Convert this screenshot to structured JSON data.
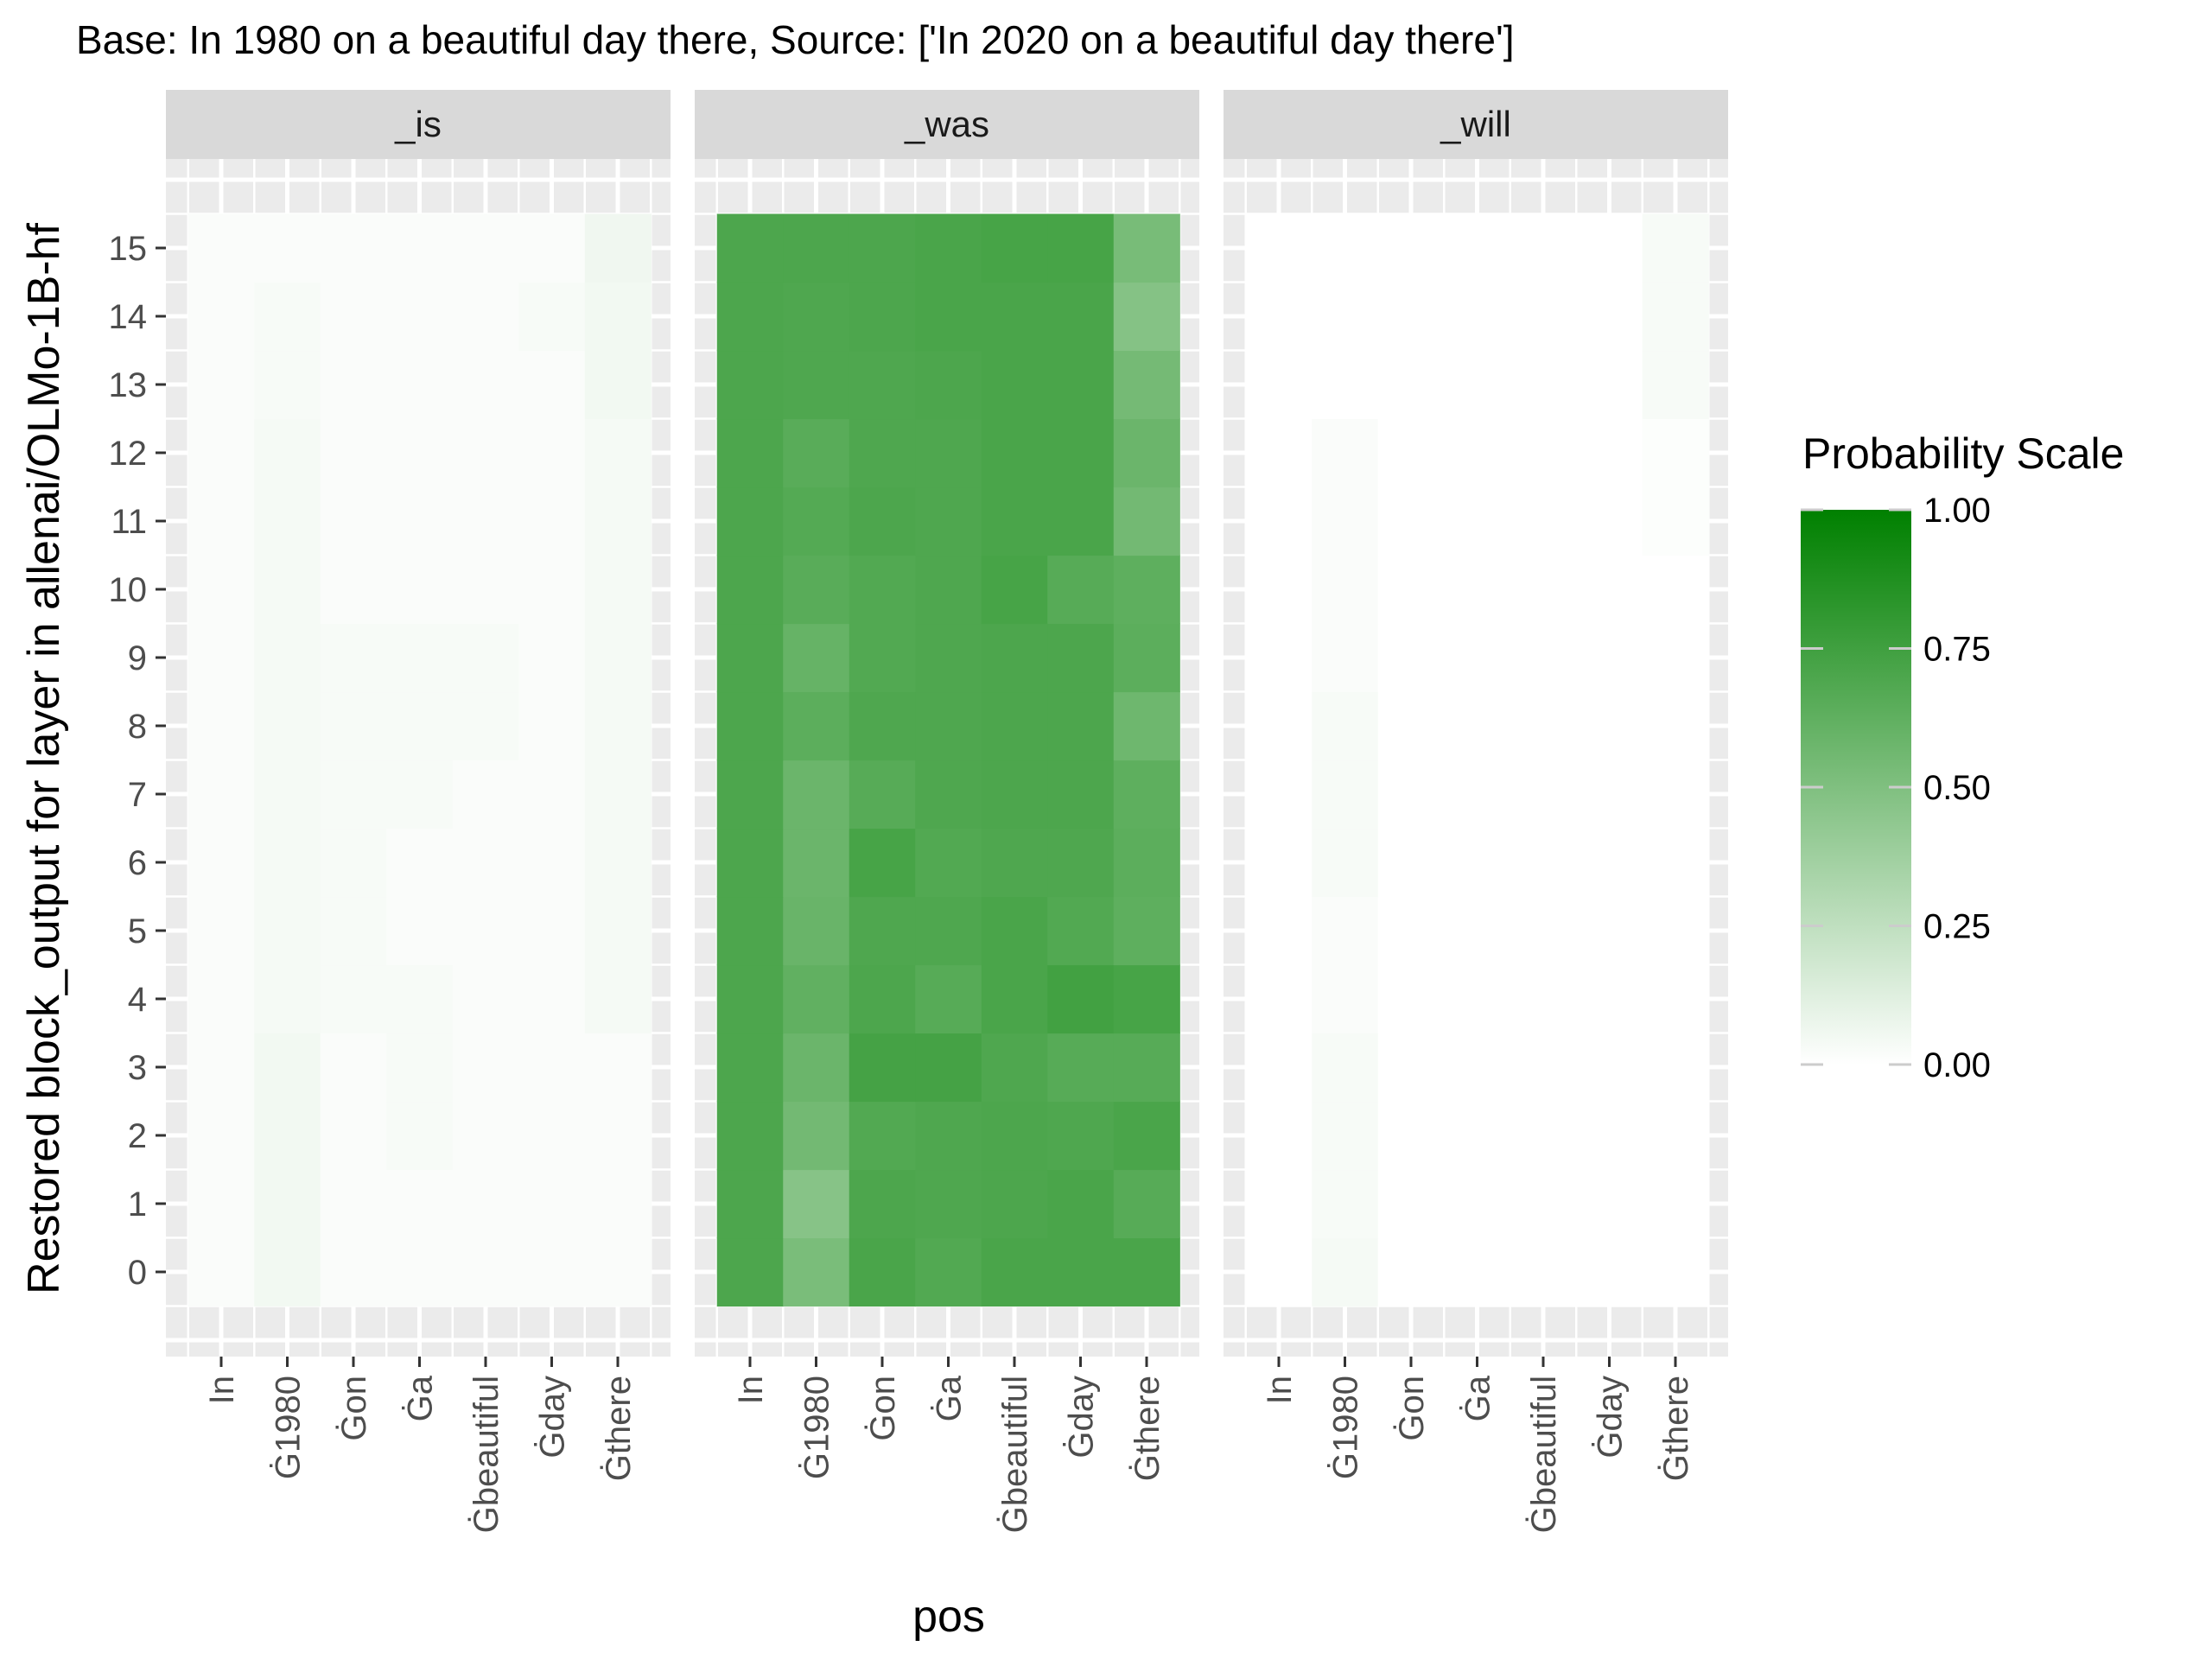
{
  "chart_data": {
    "type": "heatmap",
    "title": "Base: In 1980 on a beautiful day there, Source: ['In 2020 on a beautiful day there']",
    "xlabel": "pos",
    "ylabel": "Restored block_output for layer in allenai/OLMo-1B-hf",
    "x_categories": [
      "In",
      "Ġ1980",
      "Ġon",
      "Ġa",
      "Ġbeautiful",
      "Ġday",
      "Ġthere"
    ],
    "x_tick_labels": [
      "In",
      "Ġ1980",
      "Ġon",
      "Ġa",
      "Ġbeautiful",
      "Ġday",
      "Ġthere"
    ],
    "y_categories": [
      0,
      1,
      2,
      3,
      4,
      5,
      6,
      7,
      8,
      9,
      10,
      11,
      12,
      13,
      14,
      15
    ],
    "y_tick_labels": [
      "0",
      "1",
      "2",
      "3",
      "4",
      "5",
      "6",
      "7",
      "8",
      "9",
      "10",
      "11",
      "12",
      "13",
      "14",
      "15"
    ],
    "panels": [
      {
        "name": "_is",
        "values": [
          [
            0.02,
            0.05,
            0.02,
            0.02,
            0.02,
            0.02,
            0.02
          ],
          [
            0.02,
            0.05,
            0.02,
            0.02,
            0.02,
            0.02,
            0.02
          ],
          [
            0.02,
            0.05,
            0.02,
            0.03,
            0.02,
            0.02,
            0.02
          ],
          [
            0.02,
            0.05,
            0.02,
            0.03,
            0.02,
            0.02,
            0.02
          ],
          [
            0.02,
            0.04,
            0.03,
            0.03,
            0.02,
            0.02,
            0.04
          ],
          [
            0.02,
            0.04,
            0.03,
            0.02,
            0.02,
            0.02,
            0.04
          ],
          [
            0.02,
            0.04,
            0.03,
            0.02,
            0.02,
            0.02,
            0.04
          ],
          [
            0.02,
            0.04,
            0.03,
            0.03,
            0.02,
            0.02,
            0.04
          ],
          [
            0.02,
            0.04,
            0.03,
            0.03,
            0.03,
            0.02,
            0.04
          ],
          [
            0.02,
            0.04,
            0.03,
            0.03,
            0.03,
            0.02,
            0.04
          ],
          [
            0.02,
            0.04,
            0.02,
            0.02,
            0.02,
            0.02,
            0.04
          ],
          [
            0.02,
            0.04,
            0.02,
            0.02,
            0.02,
            0.02,
            0.04
          ],
          [
            0.02,
            0.04,
            0.02,
            0.02,
            0.02,
            0.02,
            0.04
          ],
          [
            0.02,
            0.03,
            0.02,
            0.02,
            0.02,
            0.02,
            0.05
          ],
          [
            0.02,
            0.03,
            0.02,
            0.02,
            0.02,
            0.03,
            0.05
          ],
          [
            0.02,
            0.02,
            0.02,
            0.02,
            0.02,
            0.02,
            0.06
          ]
        ]
      },
      {
        "name": "_was",
        "values": [
          [
            0.7,
            0.52,
            0.71,
            0.68,
            0.71,
            0.71,
            0.71
          ],
          [
            0.7,
            0.47,
            0.7,
            0.69,
            0.7,
            0.71,
            0.66
          ],
          [
            0.7,
            0.55,
            0.68,
            0.69,
            0.7,
            0.69,
            0.71
          ],
          [
            0.7,
            0.58,
            0.73,
            0.73,
            0.69,
            0.66,
            0.66
          ],
          [
            0.7,
            0.62,
            0.7,
            0.66,
            0.71,
            0.74,
            0.72
          ],
          [
            0.7,
            0.59,
            0.69,
            0.69,
            0.71,
            0.68,
            0.63
          ],
          [
            0.7,
            0.58,
            0.72,
            0.68,
            0.69,
            0.69,
            0.64
          ],
          [
            0.7,
            0.58,
            0.66,
            0.69,
            0.7,
            0.7,
            0.63
          ],
          [
            0.7,
            0.64,
            0.69,
            0.69,
            0.7,
            0.7,
            0.57
          ],
          [
            0.7,
            0.6,
            0.68,
            0.69,
            0.7,
            0.7,
            0.64
          ],
          [
            0.7,
            0.65,
            0.68,
            0.69,
            0.72,
            0.66,
            0.63
          ],
          [
            0.7,
            0.67,
            0.7,
            0.69,
            0.71,
            0.71,
            0.55
          ],
          [
            0.7,
            0.65,
            0.69,
            0.69,
            0.71,
            0.71,
            0.58
          ],
          [
            0.7,
            0.69,
            0.69,
            0.7,
            0.71,
            0.71,
            0.54
          ],
          [
            0.7,
            0.69,
            0.7,
            0.71,
            0.71,
            0.71,
            0.48
          ],
          [
            0.7,
            0.7,
            0.7,
            0.71,
            0.72,
            0.72,
            0.53
          ]
        ]
      },
      {
        "name": "_will",
        "values": [
          [
            0.0,
            0.04,
            0.0,
            0.0,
            0.0,
            0.0,
            0.0
          ],
          [
            0.0,
            0.03,
            0.0,
            0.0,
            0.0,
            0.0,
            0.0
          ],
          [
            0.0,
            0.03,
            0.0,
            0.0,
            0.0,
            0.0,
            0.0
          ],
          [
            0.0,
            0.03,
            0.0,
            0.0,
            0.0,
            0.0,
            0.0
          ],
          [
            0.0,
            0.02,
            0.0,
            0.0,
            0.0,
            0.0,
            0.0
          ],
          [
            0.0,
            0.02,
            0.0,
            0.0,
            0.0,
            0.0,
            0.0
          ],
          [
            0.0,
            0.03,
            0.0,
            0.0,
            0.0,
            0.0,
            0.0
          ],
          [
            0.0,
            0.03,
            0.0,
            0.0,
            0.0,
            0.0,
            0.0
          ],
          [
            0.0,
            0.03,
            0.0,
            0.0,
            0.0,
            0.0,
            0.0
          ],
          [
            0.0,
            0.02,
            0.0,
            0.0,
            0.0,
            0.0,
            0.0
          ],
          [
            0.0,
            0.02,
            0.0,
            0.0,
            0.0,
            0.0,
            0.0
          ],
          [
            0.0,
            0.02,
            0.0,
            0.0,
            0.0,
            0.0,
            0.01
          ],
          [
            0.0,
            0.02,
            0.0,
            0.0,
            0.0,
            0.0,
            0.01
          ],
          [
            0.0,
            0.0,
            0.0,
            0.0,
            0.0,
            0.0,
            0.03
          ],
          [
            0.0,
            0.0,
            0.0,
            0.0,
            0.0,
            0.0,
            0.03
          ],
          [
            0.0,
            0.0,
            0.0,
            0.0,
            0.0,
            0.0,
            0.03
          ]
        ]
      }
    ],
    "legend": {
      "title": "Probability Scale",
      "placement": "right",
      "range": [
        0,
        1
      ],
      "ticks": [
        0.0,
        0.25,
        0.5,
        0.75,
        1.0
      ],
      "tick_labels": [
        "0.00",
        "0.25",
        "0.50",
        "0.75",
        "1.00"
      ]
    },
    "colors": {
      "low": "#ffffff",
      "high": "#008000",
      "panel_bg": "#ebebeb",
      "grid": "#ffffff",
      "strip_bg": "#d9d9d9"
    },
    "grid": true
  }
}
